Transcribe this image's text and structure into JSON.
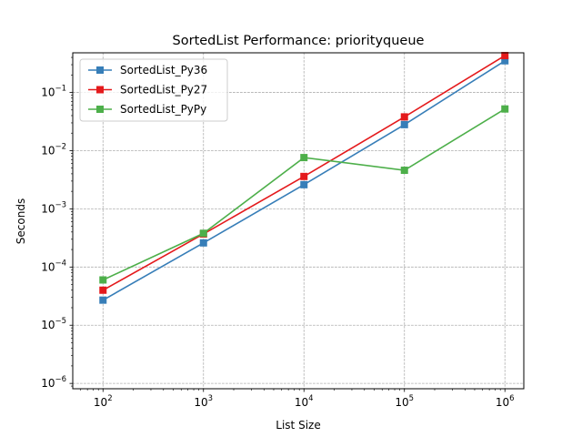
{
  "chart_data": {
    "type": "line",
    "title": "SortedList Performance: priorityqueue",
    "xlabel": "List Size",
    "ylabel": "Seconds",
    "x_scale": "log",
    "y_scale": "log",
    "x": [
      100,
      1000,
      10000,
      100000,
      1000000
    ],
    "x_tick_labels": [
      {
        "base": "10",
        "exp": "2"
      },
      {
        "base": "10",
        "exp": "3"
      },
      {
        "base": "10",
        "exp": "4"
      },
      {
        "base": "10",
        "exp": "5"
      },
      {
        "base": "10",
        "exp": "6"
      }
    ],
    "y_tick_labels": [
      {
        "base": "10",
        "exp": "−6",
        "value": 1e-06
      },
      {
        "base": "10",
        "exp": "−5",
        "value": 1e-05
      },
      {
        "base": "10",
        "exp": "−4",
        "value": 0.0001
      },
      {
        "base": "10",
        "exp": "−3",
        "value": 0.001
      },
      {
        "base": "10",
        "exp": "−2",
        "value": 0.01
      },
      {
        "base": "10",
        "exp": "−1",
        "value": 0.1
      }
    ],
    "grid": true,
    "legend_position": "top-left",
    "series": [
      {
        "name": "SortedList_Py36",
        "color": "#377eb8",
        "marker": "square",
        "values": [
          2.7e-05,
          0.00026,
          0.0026,
          0.028,
          0.35
        ]
      },
      {
        "name": "SortedList_Py27",
        "color": "#e41a1c",
        "marker": "square",
        "values": [
          4e-05,
          0.00037,
          0.0036,
          0.038,
          0.43
        ]
      },
      {
        "name": "SortedList_PyPy",
        "color": "#4daf4a",
        "marker": "square",
        "values": [
          6e-05,
          0.00038,
          0.0076,
          0.0046,
          0.052
        ]
      }
    ]
  }
}
